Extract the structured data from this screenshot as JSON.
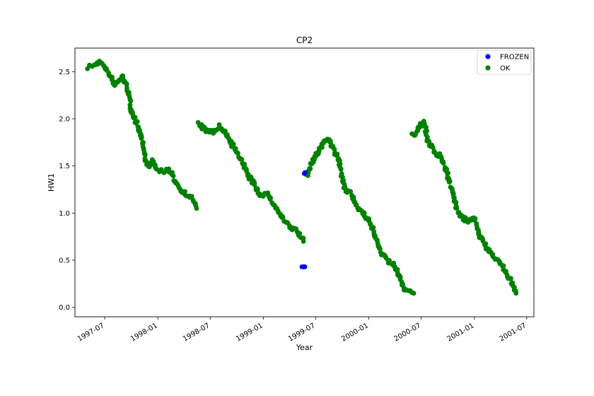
{
  "chart_data": {
    "type": "scatter",
    "title": "CP2",
    "xlabel": "Year",
    "ylabel": "HW1",
    "x_is_date": true,
    "xlim": [
      "1997-03-20",
      "2001-07-26"
    ],
    "ylim": [
      -0.1,
      2.75
    ],
    "x_ticks": [
      "1997-07",
      "1998-01",
      "1998-07",
      "1999-01",
      "1999-07",
      "2000-01",
      "2000-07",
      "2001-01",
      "2001-07"
    ],
    "y_ticks": [
      0.0,
      0.5,
      1.0,
      1.5,
      2.0,
      2.5
    ],
    "y_tick_labels": [
      "0.0",
      "0.5",
      "1.0",
      "1.5",
      "2.0",
      "2.5"
    ],
    "legend_position": "top-right",
    "grid": false,
    "series": [
      {
        "name": "FROZEN",
        "color": "#0000ff",
        "points": [
          [
            "1999-05-23",
            1.42
          ],
          [
            "1999-05-26",
            1.43
          ],
          [
            "1999-05-15",
            0.43
          ],
          [
            "1999-05-20",
            0.43
          ],
          [
            "1999-05-25",
            0.43
          ]
        ]
      },
      {
        "name": "OK",
        "color": "#008000",
        "segments": [
          [
            [
              "1997-05-05",
              2.55
            ],
            [
              "1997-05-30",
              2.58
            ],
            [
              "1997-06-20",
              2.6
            ],
            [
              "1997-06-30",
              2.55
            ],
            [
              "1997-07-20",
              2.45
            ],
            [
              "1997-08-05",
              2.35
            ],
            [
              "1997-08-15",
              2.4
            ],
            [
              "1997-09-01",
              2.45
            ],
            [
              "1997-09-20",
              2.3
            ],
            [
              "1997-10-01",
              2.1
            ],
            [
              "1997-10-20",
              1.95
            ],
            [
              "1997-11-05",
              1.8
            ],
            [
              "1997-11-20",
              1.55
            ],
            [
              "1997-12-01",
              1.5
            ],
            [
              "1997-12-15",
              1.55
            ],
            [
              "1998-01-01",
              1.45
            ],
            [
              "1998-01-20",
              1.45
            ],
            [
              "1998-02-10",
              1.45
            ],
            [
              "1998-03-01",
              1.35
            ],
            [
              "1998-03-20",
              1.25
            ],
            [
              "1998-04-10",
              1.2
            ],
            [
              "1998-05-01",
              1.15
            ],
            [
              "1998-05-15",
              1.05
            ]
          ],
          [
            [
              "1998-05-20",
              1.95
            ],
            [
              "1998-06-15",
              1.88
            ],
            [
              "1998-07-10",
              1.85
            ],
            [
              "1998-08-01",
              1.92
            ],
            [
              "1998-08-20",
              1.85
            ],
            [
              "1998-09-10",
              1.75
            ],
            [
              "1998-09-30",
              1.65
            ],
            [
              "1998-10-20",
              1.55
            ],
            [
              "1998-11-10",
              1.4
            ],
            [
              "1998-12-01",
              1.3
            ],
            [
              "1998-12-20",
              1.2
            ],
            [
              "1999-01-15",
              1.2
            ],
            [
              "1999-02-05",
              1.1
            ],
            [
              "1999-02-25",
              1.0
            ],
            [
              "1999-03-15",
              0.92
            ],
            [
              "1999-04-05",
              0.85
            ],
            [
              "1999-04-25",
              0.82
            ],
            [
              "1999-05-20",
              0.7
            ]
          ],
          [
            [
              "1999-06-01",
              1.4
            ],
            [
              "1999-06-20",
              1.55
            ],
            [
              "1999-07-10",
              1.65
            ],
            [
              "1999-07-30",
              1.75
            ],
            [
              "1999-08-15",
              1.8
            ],
            [
              "1999-09-01",
              1.68
            ],
            [
              "1999-09-20",
              1.55
            ],
            [
              "1999-10-10",
              1.25
            ],
            [
              "1999-11-01",
              1.2
            ],
            [
              "1999-11-25",
              1.05
            ],
            [
              "1999-12-15",
              1.0
            ],
            [
              "2000-01-05",
              0.9
            ],
            [
              "2000-01-25",
              0.75
            ],
            [
              "2000-02-10",
              0.6
            ],
            [
              "2000-03-01",
              0.52
            ],
            [
              "2000-03-25",
              0.45
            ],
            [
              "2000-04-15",
              0.35
            ],
            [
              "2000-05-01",
              0.2
            ],
            [
              "2000-05-20",
              0.18
            ],
            [
              "2000-06-05",
              0.15
            ]
          ],
          [
            [
              "2000-06-01",
              1.82
            ],
            [
              "2000-06-20",
              1.88
            ],
            [
              "2000-07-10",
              1.98
            ],
            [
              "2000-07-25",
              1.75
            ],
            [
              "2000-08-15",
              1.65
            ],
            [
              "2000-09-05",
              1.6
            ],
            [
              "2000-09-25",
              1.45
            ],
            [
              "2000-10-15",
              1.25
            ],
            [
              "2000-11-01",
              1.05
            ],
            [
              "2000-11-20",
              0.95
            ],
            [
              "2000-12-10",
              0.92
            ],
            [
              "2001-01-01",
              0.95
            ],
            [
              "2001-01-20",
              0.75
            ],
            [
              "2001-02-10",
              0.65
            ],
            [
              "2001-03-01",
              0.55
            ],
            [
              "2001-03-25",
              0.5
            ],
            [
              "2001-04-15",
              0.4
            ],
            [
              "2001-05-05",
              0.3
            ],
            [
              "2001-05-25",
              0.15
            ]
          ]
        ]
      }
    ]
  }
}
